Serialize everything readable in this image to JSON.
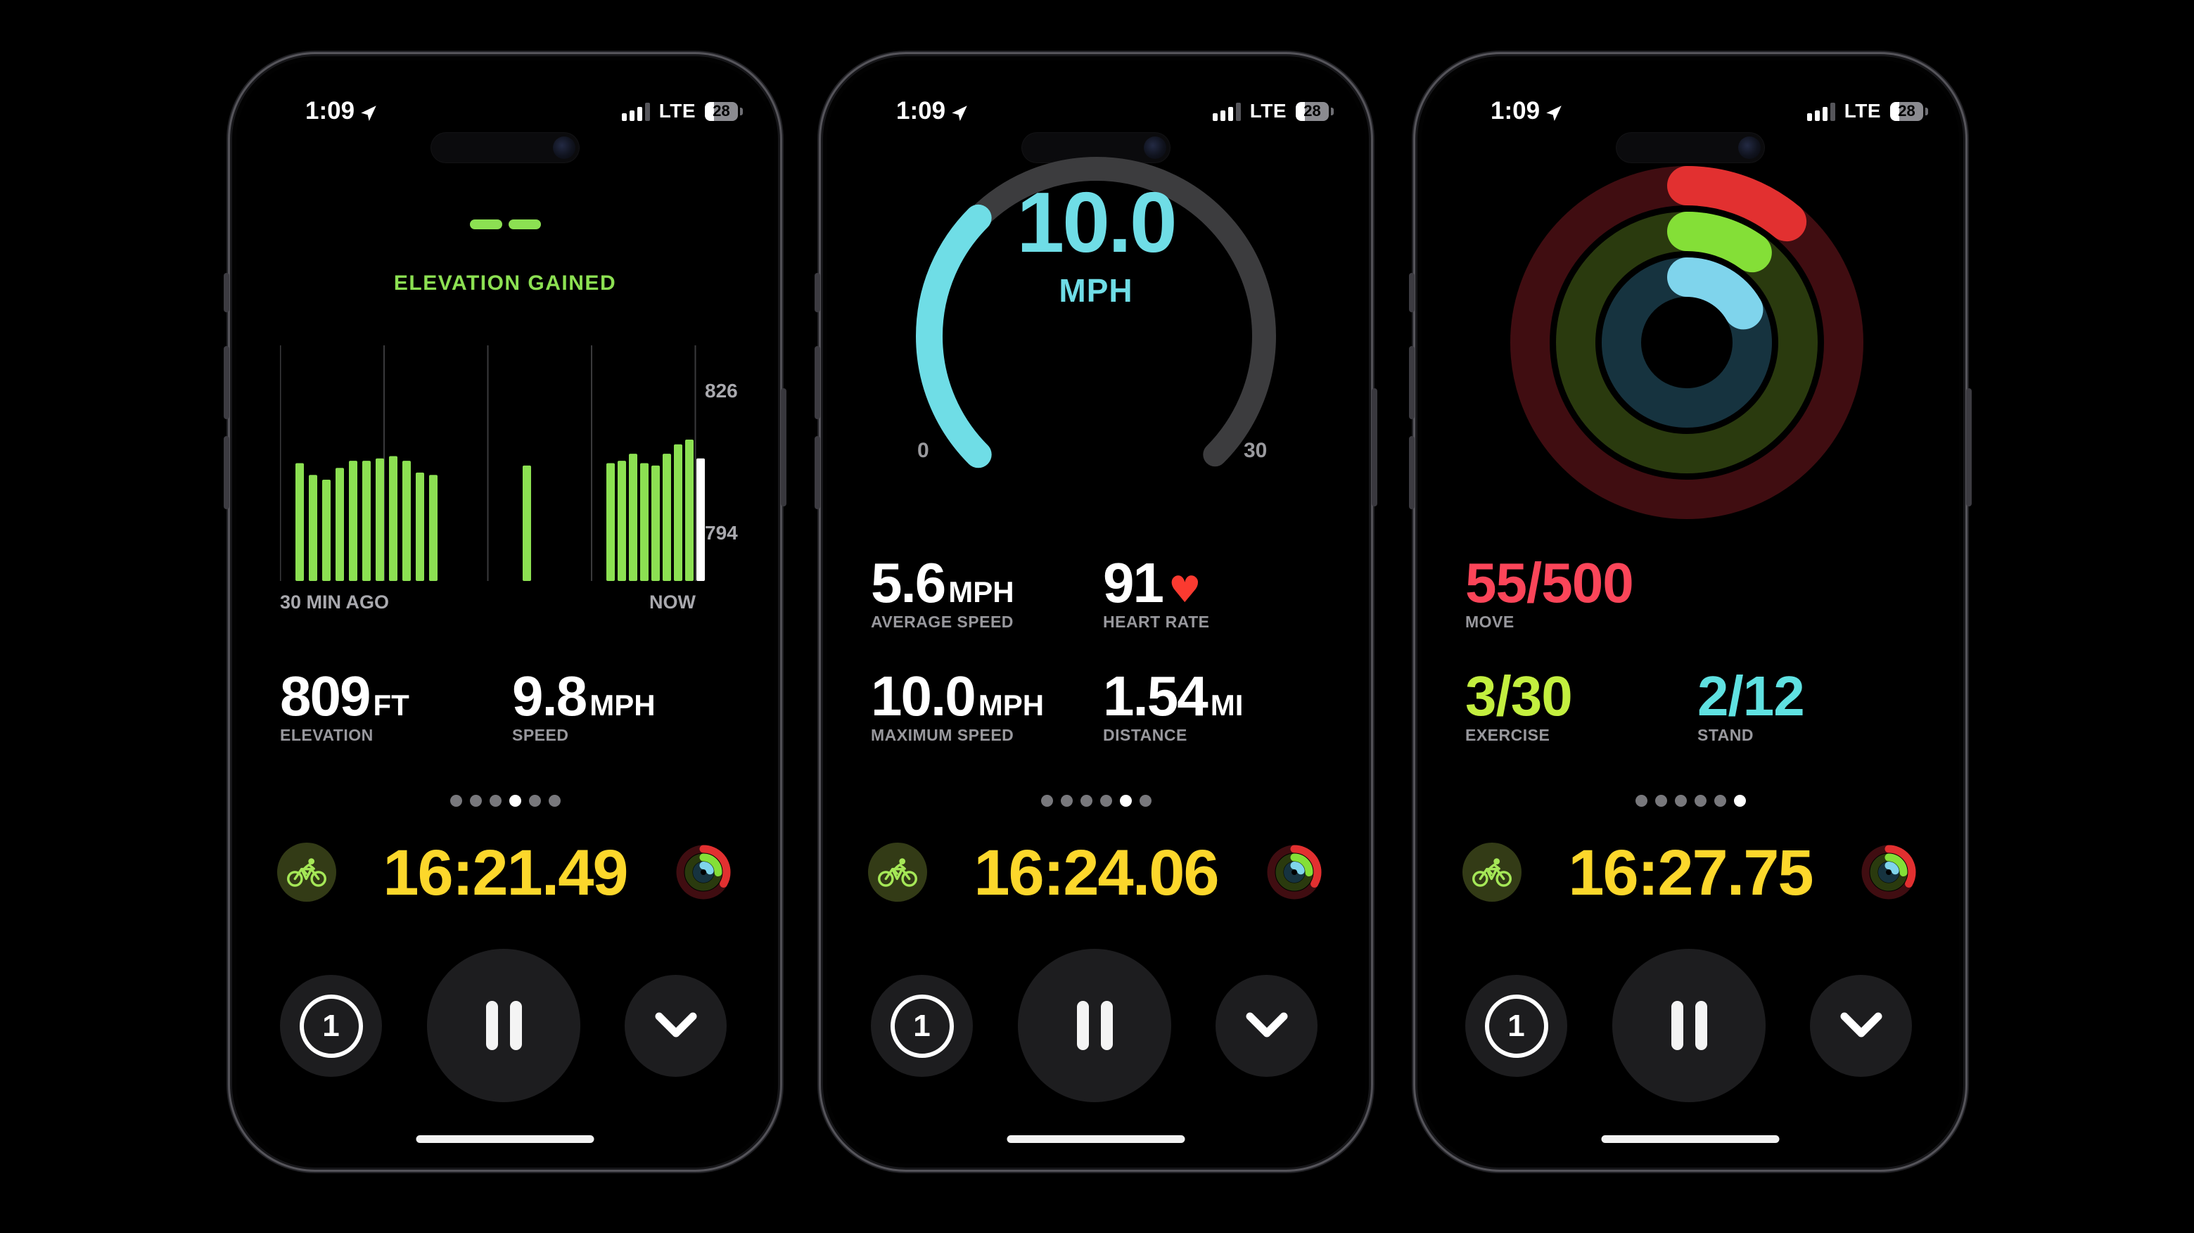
{
  "status_bar": {
    "time": "1:09",
    "network": "LTE",
    "battery_percent": "28",
    "signal_bars_lit": 3,
    "signal_bars_total": 4
  },
  "colors": {
    "green": "#8ce052",
    "timer_yellow": "#fcd72b",
    "gauge_cyan": "#6fdde6",
    "gauge_track": "#3c3c3e",
    "label_gray": "#98989d",
    "axis_gray": "#a9a9ae",
    "gridline": "#3a3a3c",
    "current_bar_white": "#ffffff",
    "ring_red": "#e23030",
    "ring_red_track": "#400d11",
    "ring_green": "#84df37",
    "ring_green_track": "#2a3a0e",
    "ring_cyan": "#7fd4ec",
    "ring_cyan_track": "#16333f",
    "move_text": "#fb4559",
    "exercise_text": "#c3ef3f",
    "stand_text": "#5fe1e1",
    "heart_red": "#fb3a30",
    "button_bg": "#1d1d1f",
    "dot_inactive": "#78787c"
  },
  "controls": {
    "segment_label": "1",
    "pause_icon": "pause",
    "collapse_icon": "chevron-down"
  },
  "workout_icon": "cyclist",
  "phones": [
    {
      "name": "elevation-page",
      "title": "ELEVATION GAINED",
      "chart_data": {
        "type": "bar",
        "title": "ELEVATION GAINED",
        "unit": "ft",
        "y_tick_labels": [
          "826",
          "794"
        ],
        "x_axis_labels": [
          "30 MIN AGO",
          "NOW"
        ],
        "gridline_count": 5,
        "grid": true,
        "bar_color_key": "green",
        "last_bar_is_current_white": true,
        "groups": [
          {
            "bars_ft": [
              810,
              807,
              806,
              809,
              810,
              810,
              811,
              811,
              810,
              808,
              807
            ],
            "height_frac": [
              0.5,
              0.45,
              0.43,
              0.48,
              0.51,
              0.51,
              0.52,
              0.53,
              0.51,
              0.46,
              0.45
            ]
          },
          {
            "bars_ft": [
              809
            ],
            "height_frac": [
              0.49
            ]
          },
          {
            "bars_ft": [
              810,
              810,
              812,
              810,
              809,
              812,
              814,
              815,
              811
            ],
            "height_frac": [
              0.5,
              0.51,
              0.54,
              0.5,
              0.49,
              0.54,
              0.58,
              0.6,
              0.52
            ]
          }
        ]
      },
      "stats": [
        {
          "value": "809",
          "unit": "FT",
          "label": "ELEVATION"
        },
        {
          "value": "9.8",
          "unit": "MPH",
          "label": "SPEED"
        }
      ],
      "page_dots": {
        "total": 6,
        "active_index": 3
      },
      "timer": "16:21.49"
    },
    {
      "name": "speed-page",
      "chart_data": {
        "type": "gauge",
        "value": 10.0,
        "display_value": "10.0",
        "unit": "MPH",
        "min": 0,
        "max": 30,
        "min_label": "0",
        "max_label": "30",
        "arc_total_degrees": 270
      },
      "stats": [
        {
          "value": "5.6",
          "unit": "MPH",
          "label": "AVERAGE SPEED"
        },
        {
          "value": "91",
          "unit": "♥",
          "label": "HEART RATE"
        },
        {
          "value": "10.0",
          "unit": "MPH",
          "label": "MAXIMUM SPEED"
        },
        {
          "value": "1.54",
          "unit": "MI",
          "label": "DISTANCE"
        }
      ],
      "page_dots": {
        "total": 6,
        "active_index": 4
      },
      "timer": "16:24.06"
    },
    {
      "name": "activity-page",
      "chart_data": {
        "type": "activity-rings",
        "rings": [
          {
            "name": "move",
            "value": 55,
            "goal": 500
          },
          {
            "name": "exercise",
            "value": 3,
            "goal": 30
          },
          {
            "name": "stand",
            "value": 2,
            "goal": 12
          }
        ]
      },
      "stats": [
        {
          "value": "55/500",
          "label": "MOVE",
          "color_key": "move_text"
        },
        {
          "value": "3/30",
          "label": "EXERCISE",
          "color_key": "exercise_text"
        },
        {
          "value": "2/12",
          "label": "STAND",
          "color_key": "stand_text"
        }
      ],
      "page_dots": {
        "total": 6,
        "active_index": 5
      },
      "timer": "16:27.75"
    }
  ]
}
